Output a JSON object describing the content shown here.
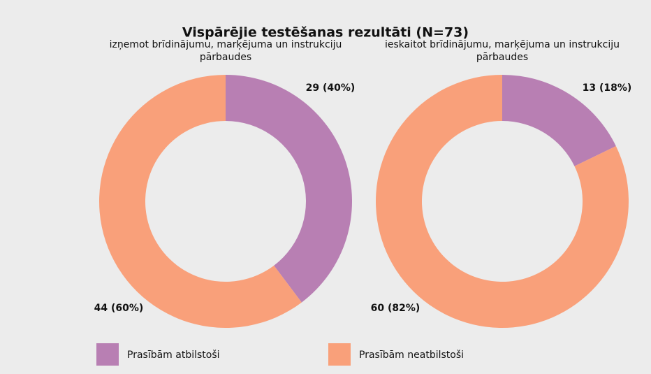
{
  "title": "Vispārējie testēšanas rezultāti (N=73)",
  "chart_data": [
    {
      "type": "donut",
      "subtitle": "izņemot brīdinājumu, marķējuma un instrukciju pārbaudes",
      "categories": [
        "Prasībām atbilstoši",
        "Prasībām neatbilstoši"
      ],
      "values": [
        29,
        44
      ],
      "value_labels": [
        "29 (40%)",
        "44 (60%)"
      ],
      "colors": [
        "#b87fb3",
        "#f9a07a"
      ]
    },
    {
      "type": "donut",
      "subtitle": "ieskaitot brīdinājumu, marķējuma un instrukciju pārbaudes",
      "categories": [
        "Prasībām atbilstoši",
        "Prasībām neatbilstoši"
      ],
      "values": [
        13,
        60
      ],
      "value_labels": [
        "13 (18%)",
        "60 (82%)"
      ],
      "colors": [
        "#b87fb3",
        "#f9a07a"
      ]
    }
  ]
}
